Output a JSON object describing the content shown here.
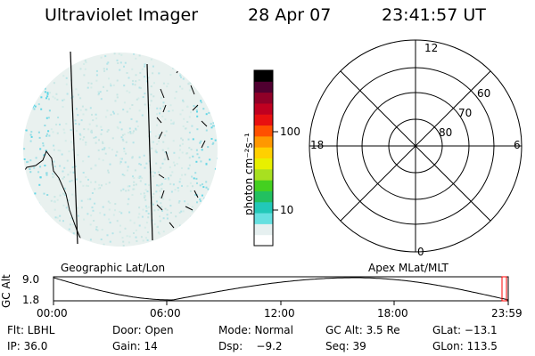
{
  "header": {
    "title": "Ultraviolet Imager",
    "date": "28 Apr 07",
    "time": "23:41:57 UT"
  },
  "colorbar": {
    "unit_label": "photon cm⁻²s⁻¹",
    "ticks": [
      "100",
      "10"
    ],
    "scale": "log",
    "colors": [
      "#ffffff",
      "#e6f0f0",
      "#66e0e0",
      "#22c8b8",
      "#22c060",
      "#44d020",
      "#a8e020",
      "#e8f000",
      "#ffd000",
      "#ff9800",
      "#ff5000",
      "#e81010",
      "#c00020",
      "#900028",
      "#500030",
      "#000000"
    ]
  },
  "panels": {
    "geo_label": "Geographic Lat/Lon",
    "apex_label": "Apex MLat/MLT"
  },
  "polar": {
    "mlt_labels": {
      "top": "12",
      "bottom": "0",
      "left": "18",
      "right": "6"
    },
    "lat_labels": [
      "60",
      "70",
      "80"
    ]
  },
  "altitude_plot": {
    "ylabel": "GC Alt",
    "yticks": [
      "9.0",
      "1.8"
    ],
    "xticks": [
      "00:00",
      "06:00",
      "12:00",
      "18:00",
      "23:59"
    ],
    "curve_color": "#000000",
    "marker_color": "#ff0000"
  },
  "info": {
    "row1": [
      "Flt: LBHL",
      "Door: Open",
      "Mode: Normal",
      "GC Alt: 3.5 Re",
      "GLat: −13.1"
    ],
    "row2": [
      "IP: 36.0",
      "Gain: 14",
      "Dsp:    −9.2",
      "Seq: 39",
      "GLon: 113.5"
    ]
  }
}
